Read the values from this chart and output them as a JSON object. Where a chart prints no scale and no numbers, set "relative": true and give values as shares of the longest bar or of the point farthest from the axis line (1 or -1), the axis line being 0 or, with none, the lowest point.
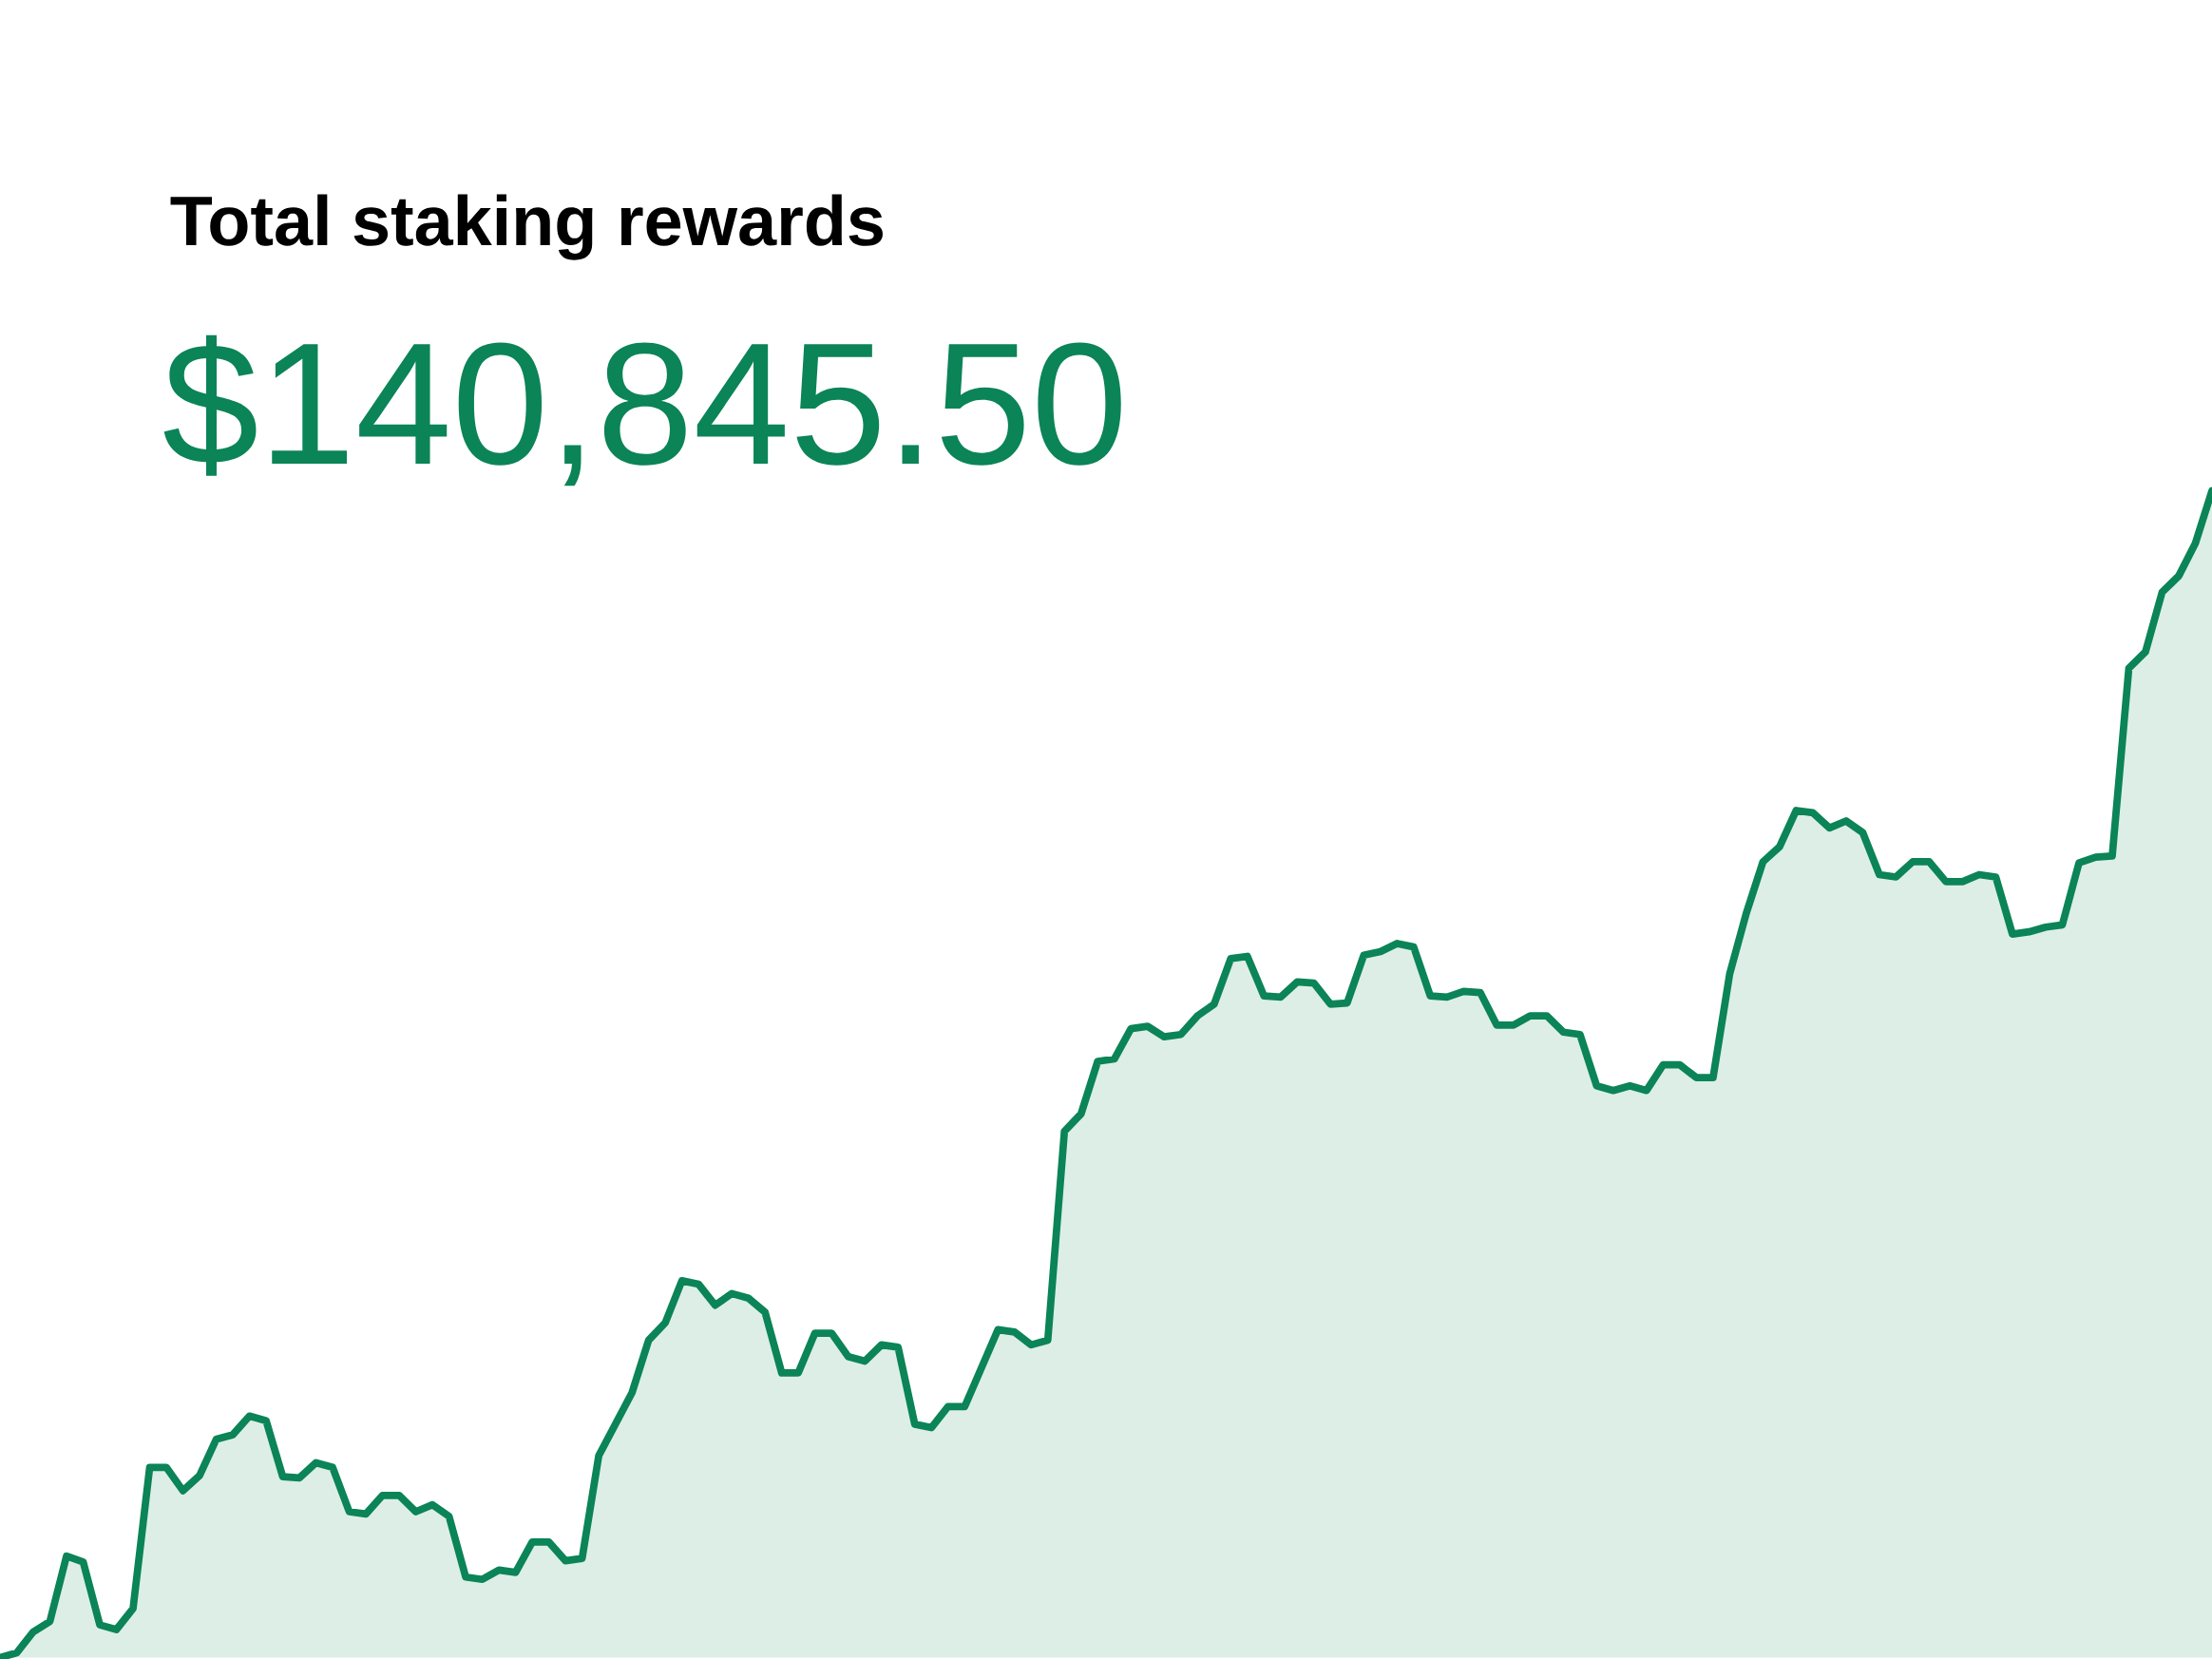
{
  "chart_data": {
    "type": "area",
    "title": "Total staking rewards",
    "subtitle": "$140,845.50",
    "relative": true,
    "color": "#0b8457",
    "categories": [
      null,
      null,
      null,
      null,
      null,
      null,
      null,
      null,
      null,
      null,
      null,
      null,
      null,
      null,
      null,
      null,
      null,
      null,
      null,
      null,
      null,
      null,
      null,
      null,
      null,
      null,
      null,
      null,
      null,
      null,
      null,
      null,
      null,
      null,
      null,
      null,
      null,
      null,
      null,
      null,
      null,
      null,
      null,
      null,
      null,
      null,
      null,
      null,
      null,
      null,
      null,
      null,
      null,
      null,
      null,
      null,
      null,
      null,
      null,
      null,
      null,
      null,
      null,
      null,
      null,
      null,
      null,
      null,
      null,
      null,
      null,
      null,
      null,
      null,
      null,
      null,
      null,
      null,
      null,
      null,
      null,
      null,
      null,
      null,
      null,
      null,
      null,
      null,
      null,
      null,
      null,
      null,
      null,
      null,
      null,
      null,
      null,
      null,
      null,
      null,
      null,
      null,
      null,
      null,
      null,
      null,
      null,
      null,
      null,
      null,
      null,
      null,
      null,
      null,
      null,
      null,
      null,
      null,
      null,
      null,
      null,
      null,
      null,
      null,
      null,
      null,
      null,
      null,
      null,
      null,
      null,
      null,
      null,
      null
    ],
    "values": [
      0,
      0.004,
      0.022,
      0.031,
      0.087,
      0.082,
      0.028,
      0.024,
      0.042,
      0.163,
      0.163,
      0.143,
      0.156,
      0.187,
      0.191,
      0.207,
      0.203,
      0.155,
      0.154,
      0.167,
      0.163,
      0.125,
      0.123,
      0.139,
      0.139,
      0.125,
      0.131,
      0.121,
      0.069,
      0.067,
      0.075,
      0.073,
      0.099,
      0.099,
      0.083,
      0.085,
      0.173,
      0.2,
      0.227,
      0.272,
      0.287,
      0.323,
      0.32,
      0.302,
      0.312,
      0.308,
      0.296,
      0.244,
      0.244,
      0.278,
      0.278,
      0.258,
      0.254,
      0.268,
      0.266,
      0.2,
      0.197,
      0.215,
      0.215,
      0.248,
      0.281,
      0.279,
      0.268,
      0.272,
      0.451,
      0.466,
      0.511,
      0.513,
      0.539,
      0.541,
      0.532,
      0.534,
      0.55,
      0.56,
      0.599,
      0.601,
      0.567,
      0.566,
      0.579,
      0.578,
      0.56,
      0.561,
      0.602,
      0.605,
      0.612,
      0.609,
      0.567,
      0.566,
      0.571,
      0.57,
      0.542,
      0.542,
      0.55,
      0.55,
      0.536,
      0.534,
      0.49,
      0.486,
      0.49,
      0.486,
      0.508,
      0.508,
      0.497,
      0.497,
      0.586,
      0.638,
      0.682,
      0.695,
      0.726,
      0.724,
      0.711,
      0.717,
      0.707,
      0.671,
      0.669,
      0.682,
      0.682,
      0.665,
      0.665,
      0.671,
      0.669,
      0.62,
      0.622,
      0.626,
      0.628,
      0.681,
      0.686,
      0.687,
      0.848,
      0.862,
      0.913,
      0.927,
      0.955,
      1
    ]
  }
}
